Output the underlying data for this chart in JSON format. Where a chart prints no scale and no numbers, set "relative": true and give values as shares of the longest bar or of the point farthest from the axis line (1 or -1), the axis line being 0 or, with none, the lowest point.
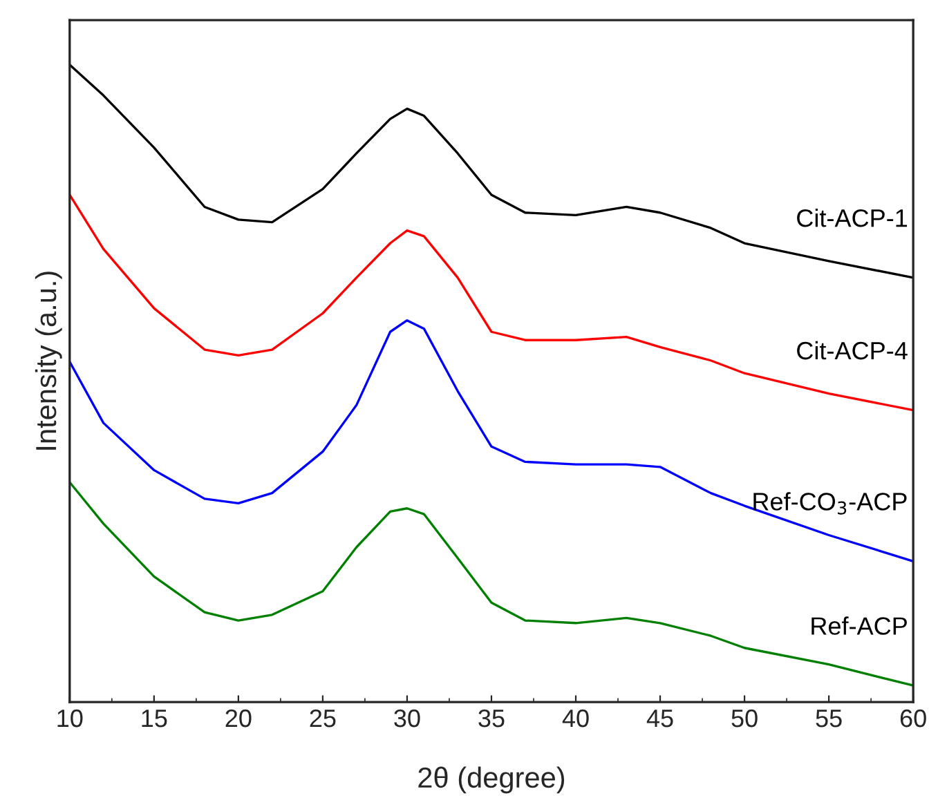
{
  "chart_data": {
    "type": "line",
    "relative": true,
    "xlabel": "2θ (degree)",
    "ylabel": "Intensity (a.u.)",
    "x": [
      10,
      12,
      15,
      18,
      20,
      22,
      25,
      27,
      29,
      30,
      31,
      33,
      35,
      37,
      40,
      43,
      45,
      48,
      50,
      55,
      60
    ],
    "xlim": [
      10,
      60
    ],
    "xticks": [
      10,
      15,
      20,
      25,
      30,
      35,
      40,
      45,
      50,
      55,
      60
    ],
    "grid": false,
    "legend": false,
    "marker": "none",
    "line_style": "solid",
    "series": [
      {
        "name": "Cit-ACP-1",
        "color": "#000000",
        "values": [
          1.0,
          0.952,
          0.87,
          0.777,
          0.757,
          0.753,
          0.805,
          0.861,
          0.915,
          0.931,
          0.92,
          0.861,
          0.796,
          0.768,
          0.764,
          0.777,
          0.768,
          0.744,
          0.72,
          0.692,
          0.666
        ]
      },
      {
        "name": "Cit-ACP-4",
        "color": "#ff0000",
        "values": [
          0.796,
          0.711,
          0.618,
          0.553,
          0.544,
          0.553,
          0.61,
          0.666,
          0.72,
          0.74,
          0.731,
          0.666,
          0.581,
          0.568,
          0.568,
          0.573,
          0.557,
          0.536,
          0.516,
          0.484,
          0.458
        ]
      },
      {
        "name": "Ref-CO$_{3}$-ACP",
        "color": "#0000ff",
        "values": [
          0.534,
          0.438,
          0.364,
          0.319,
          0.312,
          0.328,
          0.393,
          0.466,
          0.581,
          0.599,
          0.586,
          0.488,
          0.401,
          0.377,
          0.373,
          0.373,
          0.369,
          0.328,
          0.308,
          0.262,
          0.221
        ]
      },
      {
        "name": "Ref-ACP",
        "color": "#008000",
        "values": [
          0.345,
          0.28,
          0.197,
          0.141,
          0.128,
          0.137,
          0.174,
          0.243,
          0.299,
          0.304,
          0.295,
          0.226,
          0.156,
          0.128,
          0.124,
          0.132,
          0.124,
          0.104,
          0.085,
          0.059,
          0.026
        ]
      }
    ]
  }
}
